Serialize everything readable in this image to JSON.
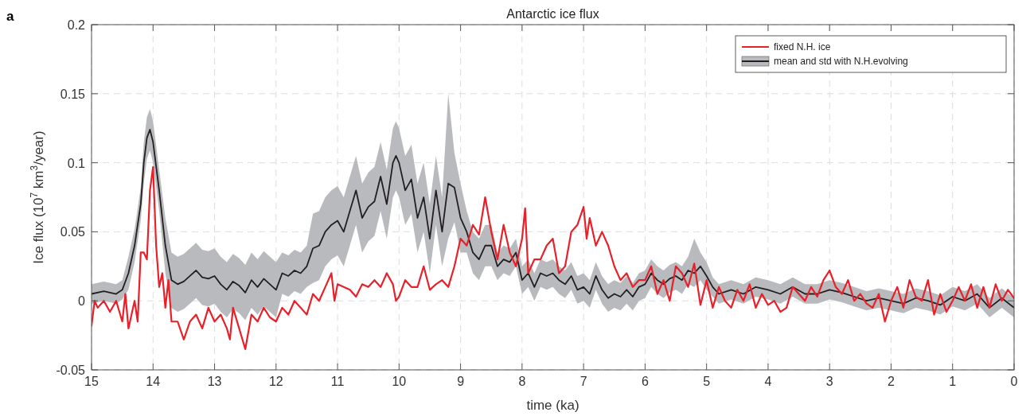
{
  "chart_data": {
    "type": "line",
    "title": "Antarctic ice flux",
    "xlabel": "time (ka)",
    "ylabel": "Ice  flux (10$^{7}$ km$^{3}$/year)",
    "annotations": [
      "a"
    ],
    "xlim": [
      15,
      0
    ],
    "xticks": [
      15,
      14,
      13,
      12,
      11,
      10,
      9,
      8,
      7,
      6,
      5,
      4,
      3,
      2,
      1,
      0
    ],
    "ylim": [
      -0.05,
      0.2
    ],
    "yticks": [
      -0.05,
      0,
      0.05,
      0.1,
      0.15,
      0.2
    ],
    "grid": true,
    "legend": "top right",
    "line_style": "solid",
    "marker": "none",
    "series": [
      {
        "name": "fixed N.H. ice",
        "color": "#e8202a",
        "x": [
          15,
          14.95,
          14.9,
          14.8,
          14.7,
          14.6,
          14.5,
          14.45,
          14.4,
          14.35,
          14.3,
          14.25,
          14.2,
          14.15,
          14.1,
          14.05,
          14,
          13.95,
          13.9,
          13.85,
          13.8,
          13.75,
          13.7,
          13.6,
          13.5,
          13.4,
          13.3,
          13.2,
          13.1,
          13,
          12.9,
          12.8,
          12.75,
          12.7,
          12.6,
          12.5,
          12.4,
          12.3,
          12.2,
          12.1,
          12,
          11.9,
          11.8,
          11.7,
          11.6,
          11.5,
          11.4,
          11.3,
          11.2,
          11.1,
          11.05,
          11,
          10.9,
          10.8,
          10.7,
          10.6,
          10.5,
          10.4,
          10.3,
          10.2,
          10.1,
          10.05,
          10,
          9.9,
          9.8,
          9.7,
          9.6,
          9.5,
          9.4,
          9.3,
          9.2,
          9.1,
          9,
          8.9,
          8.8,
          8.7,
          8.6,
          8.5,
          8.4,
          8.3,
          8.2,
          8.1,
          8,
          7.95,
          7.9,
          7.8,
          7.7,
          7.6,
          7.5,
          7.4,
          7.3,
          7.2,
          7.1,
          7,
          6.95,
          6.9,
          6.8,
          6.7,
          6.6,
          6.5,
          6.4,
          6.3,
          6.2,
          6.1,
          6,
          5.9,
          5.8,
          5.7,
          5.6,
          5.5,
          5.4,
          5.3,
          5.2,
          5.1,
          5,
          4.9,
          4.8,
          4.7,
          4.6,
          4.5,
          4.4,
          4.3,
          4.2,
          4.1,
          4,
          3.9,
          3.8,
          3.7,
          3.6,
          3.5,
          3.4,
          3.3,
          3.2,
          3.1,
          3,
          2.9,
          2.8,
          2.7,
          2.6,
          2.5,
          2.4,
          2.3,
          2.2,
          2.1,
          2,
          1.9,
          1.8,
          1.7,
          1.6,
          1.5,
          1.4,
          1.3,
          1.2,
          1.1,
          1,
          0.9,
          0.8,
          0.7,
          0.6,
          0.5,
          0.4,
          0.3,
          0.2,
          0.1,
          0
        ],
        "values": [
          -0.018,
          0,
          -0.005,
          0,
          -0.008,
          0,
          -0.015,
          0.005,
          -0.02,
          -0.01,
          0,
          -0.015,
          0.035,
          0.035,
          0.03,
          0.08,
          0.097,
          0.04,
          0.01,
          0.02,
          -0.005,
          0.015,
          -0.015,
          -0.015,
          -0.028,
          -0.015,
          -0.01,
          -0.02,
          -0.005,
          -0.015,
          -0.01,
          -0.02,
          -0.028,
          -0.005,
          -0.02,
          -0.035,
          -0.01,
          -0.015,
          -0.005,
          -0.012,
          -0.015,
          -0.005,
          -0.01,
          0,
          -0.005,
          -0.01,
          0.005,
          0,
          0.01,
          0.02,
          0,
          0.012,
          0.01,
          0.008,
          0.003,
          0.012,
          0.01,
          0.015,
          0.01,
          0.02,
          0.012,
          0,
          0.003,
          0.015,
          0.01,
          0.01,
          0.025,
          0.008,
          0.012,
          0.015,
          0.01,
          0.025,
          0.045,
          0.04,
          0.055,
          0.048,
          0.075,
          0.05,
          0.03,
          0.055,
          0.035,
          0.025,
          0.045,
          0.067,
          0.02,
          0.03,
          0.03,
          0.04,
          0.045,
          0.02,
          0.025,
          0.05,
          0.055,
          0.068,
          0.045,
          0.06,
          0.04,
          0.05,
          0.04,
          0.025,
          0.015,
          0.02,
          0.01,
          0.015,
          0.015,
          0.025,
          0.005,
          0.015,
          0,
          0.025,
          0.02,
          0.01,
          0.027,
          -0.003,
          0.015,
          -0.005,
          0.01,
          0,
          -0.005,
          0.008,
          0,
          0.012,
          -0.005,
          0.005,
          -0.003,
          0,
          -0.008,
          -0.005,
          0.01,
          0.005,
          0,
          0.01,
          0.003,
          0.015,
          0.022,
          0.01,
          0.005,
          0.015,
          0,
          0.005,
          -0.002,
          -0.005,
          0.005,
          -0.015,
          0,
          0.01,
          -0.005,
          0.015,
          0.003,
          0,
          0.015,
          -0.01,
          0.005,
          -0.008,
          0,
          0.01,
          0,
          0.012,
          -0.005,
          0.01,
          -0.005,
          0.012,
          0,
          0.008,
          0.002
        ]
      },
      {
        "name": "mean and std with N.H.evolving",
        "color": "#231f20",
        "x": [
          15,
          14.8,
          14.6,
          14.5,
          14.4,
          14.3,
          14.2,
          14.15,
          14.1,
          14.05,
          14,
          13.9,
          13.8,
          13.7,
          13.6,
          13.5,
          13.4,
          13.3,
          13.2,
          13.1,
          13,
          12.9,
          12.8,
          12.7,
          12.6,
          12.5,
          12.4,
          12.3,
          12.2,
          12.1,
          12,
          11.9,
          11.8,
          11.7,
          11.6,
          11.5,
          11.4,
          11.3,
          11.2,
          11.1,
          11,
          10.9,
          10.8,
          10.7,
          10.6,
          10.5,
          10.4,
          10.3,
          10.2,
          10.1,
          10.05,
          10,
          9.9,
          9.8,
          9.7,
          9.6,
          9.5,
          9.4,
          9.3,
          9.2,
          9.1,
          9,
          8.9,
          8.8,
          8.7,
          8.6,
          8.5,
          8.4,
          8.3,
          8.2,
          8.1,
          8,
          7.9,
          7.8,
          7.7,
          7.6,
          7.5,
          7.4,
          7.3,
          7.2,
          7.1,
          7,
          6.9,
          6.8,
          6.7,
          6.6,
          6.5,
          6.4,
          6.3,
          6.2,
          6.1,
          6,
          5.9,
          5.8,
          5.7,
          5.6,
          5.5,
          5.4,
          5.3,
          5.2,
          5.1,
          5,
          4.9,
          4.8,
          4.6,
          4.4,
          4.2,
          4,
          3.8,
          3.6,
          3.4,
          3.2,
          3,
          2.8,
          2.6,
          2.4,
          2.2,
          2,
          1.8,
          1.6,
          1.4,
          1.2,
          1,
          0.8,
          0.6,
          0.4,
          0.2,
          0
        ],
        "values": [
          0.005,
          0.007,
          0.005,
          0.008,
          0.02,
          0.04,
          0.07,
          0.1,
          0.118,
          0.124,
          0.115,
          0.08,
          0.04,
          0.015,
          0.012,
          0.014,
          0.018,
          0.022,
          0.017,
          0.016,
          0.018,
          0.012,
          0.008,
          0.014,
          0.011,
          0.006,
          0.015,
          0.01,
          0.016,
          0.012,
          0.008,
          0.02,
          0.018,
          0.022,
          0.02,
          0.025,
          0.038,
          0.04,
          0.05,
          0.055,
          0.058,
          0.05,
          0.065,
          0.08,
          0.06,
          0.068,
          0.072,
          0.09,
          0.07,
          0.1,
          0.105,
          0.1,
          0.08,
          0.088,
          0.06,
          0.075,
          0.045,
          0.08,
          0.05,
          0.085,
          0.082,
          0.06,
          0.05,
          0.035,
          0.03,
          0.04,
          0.04,
          0.025,
          0.03,
          0.028,
          0.035,
          0.015,
          0.02,
          0.01,
          0.02,
          0.018,
          0.02,
          0.015,
          0.012,
          0.018,
          0.008,
          0.01,
          0.005,
          0.018,
          0.008,
          0.002,
          0.005,
          0.003,
          0.008,
          0.003,
          0.01,
          0.012,
          0.02,
          0.015,
          0.012,
          0.016,
          0.018,
          0.015,
          0.022,
          0.02,
          0.025,
          0.018,
          0.01,
          0.005,
          0.008,
          0.005,
          0.01,
          0.008,
          0.005,
          0.01,
          0.005,
          0.005,
          0.008,
          0.006,
          0.003,
          0,
          0.002,
          0,
          -0.002,
          0.002,
          0,
          -0.003,
          0.003,
          0,
          0.005,
          -0.005,
          0.002,
          -0.005
        ],
        "lower": [
          -0.002,
          0,
          -0.002,
          0.001,
          0.008,
          0.028,
          0.058,
          0.085,
          0.103,
          0.109,
          0.1,
          0.065,
          0.02,
          -0.005,
          -0.008,
          -0.006,
          -0.002,
          0.002,
          -0.003,
          -0.004,
          -0.002,
          -0.008,
          -0.012,
          -0.006,
          -0.009,
          -0.014,
          -0.005,
          -0.01,
          -0.004,
          -0.008,
          -0.012,
          0.005,
          0.003,
          0.007,
          0.005,
          0.01,
          0.013,
          0.015,
          0.025,
          0.03,
          0.033,
          0.025,
          0.04,
          0.055,
          0.035,
          0.043,
          0.047,
          0.065,
          0.045,
          0.075,
          0.08,
          0.075,
          0.055,
          0.063,
          0.035,
          0.05,
          0.02,
          0.055,
          0.025,
          0.045,
          0.057,
          0.035,
          0.035,
          0.02,
          0.015,
          0.025,
          0.025,
          0.015,
          0.02,
          0.018,
          0.025,
          0.005,
          0.01,
          0,
          0.01,
          0.008,
          0.01,
          0.005,
          0.002,
          0.008,
          -0.002,
          0,
          -0.005,
          0.008,
          -0.002,
          -0.008,
          -0.005,
          -0.007,
          -0.002,
          -0.007,
          0,
          0.002,
          0.01,
          0.005,
          0.002,
          0.006,
          0.008,
          0.005,
          0.012,
          0.01,
          0.015,
          0.008,
          0.003,
          -0.002,
          0.001,
          -0.002,
          0.003,
          0.001,
          -0.002,
          0.003,
          -0.002,
          -0.002,
          0.001,
          -0.001,
          -0.004,
          -0.007,
          -0.005,
          -0.007,
          -0.009,
          -0.005,
          -0.007,
          -0.01,
          -0.004,
          -0.007,
          -0.002,
          -0.012,
          -0.005,
          -0.012
        ],
        "upper": [
          0.012,
          0.014,
          0.012,
          0.015,
          0.032,
          0.052,
          0.082,
          0.115,
          0.133,
          0.139,
          0.13,
          0.095,
          0.06,
          0.035,
          0.032,
          0.034,
          0.038,
          0.042,
          0.037,
          0.036,
          0.038,
          0.032,
          0.028,
          0.034,
          0.031,
          0.026,
          0.035,
          0.03,
          0.036,
          0.032,
          0.028,
          0.035,
          0.033,
          0.037,
          0.035,
          0.04,
          0.063,
          0.065,
          0.075,
          0.08,
          0.083,
          0.075,
          0.09,
          0.105,
          0.085,
          0.093,
          0.097,
          0.115,
          0.095,
          0.125,
          0.13,
          0.125,
          0.105,
          0.113,
          0.085,
          0.1,
          0.07,
          0.105,
          0.075,
          0.15,
          0.107,
          0.085,
          0.065,
          0.05,
          0.045,
          0.055,
          0.055,
          0.035,
          0.04,
          0.038,
          0.045,
          0.025,
          0.03,
          0.02,
          0.03,
          0.028,
          0.03,
          0.025,
          0.022,
          0.028,
          0.018,
          0.02,
          0.015,
          0.028,
          0.018,
          0.012,
          0.015,
          0.013,
          0.018,
          0.013,
          0.02,
          0.022,
          0.03,
          0.025,
          0.022,
          0.026,
          0.028,
          0.025,
          0.032,
          0.045,
          0.035,
          0.028,
          0.017,
          0.012,
          0.015,
          0.012,
          0.017,
          0.015,
          0.012,
          0.017,
          0.012,
          0.012,
          0.015,
          0.013,
          0.01,
          0.007,
          0.009,
          0.007,
          0.005,
          0.009,
          0.007,
          0.004,
          0.01,
          0.007,
          0.012,
          0.002,
          0.009,
          0.002
        ]
      }
    ]
  }
}
